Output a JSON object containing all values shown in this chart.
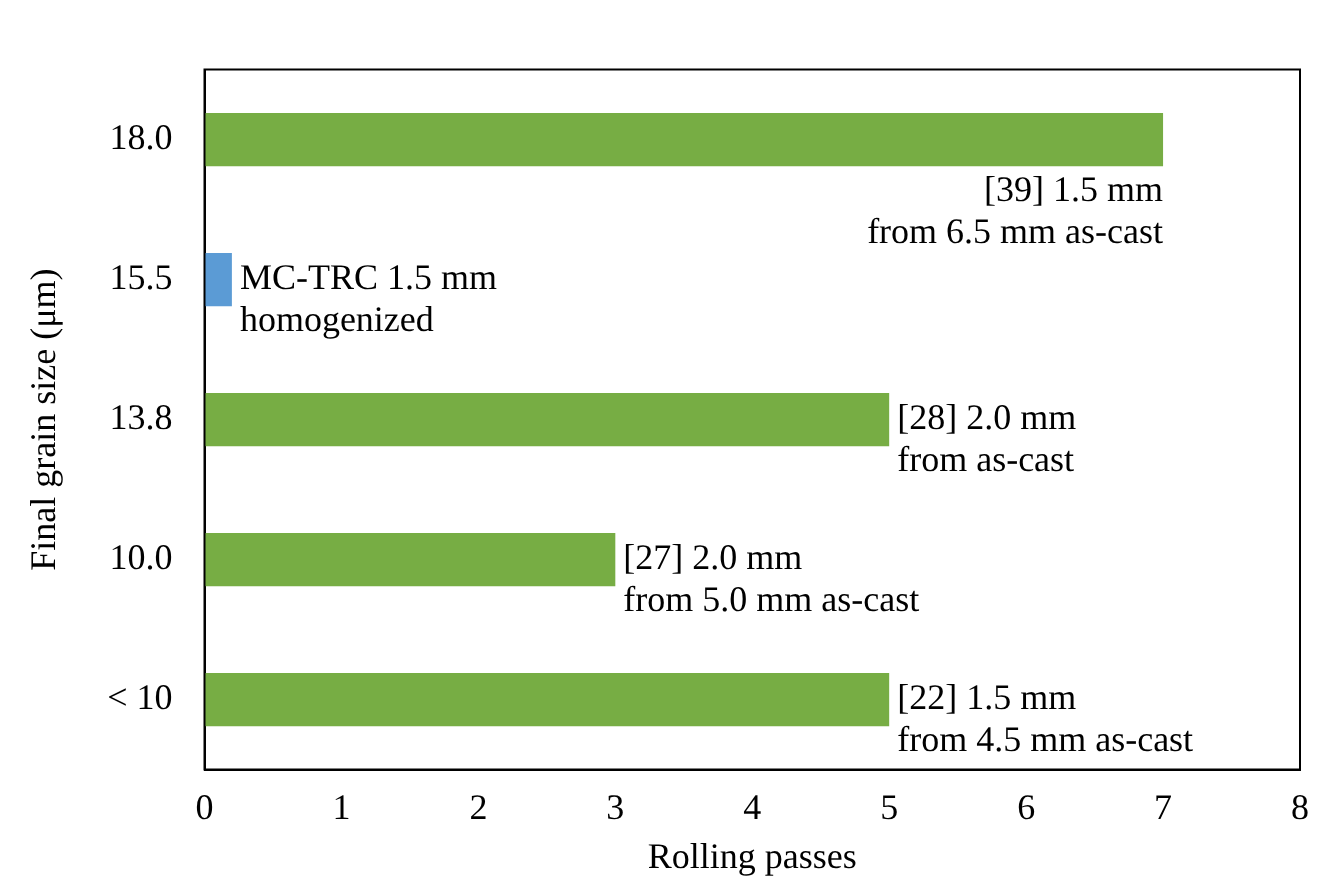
{
  "chart_data": {
    "type": "bar",
    "orientation": "horizontal",
    "xlabel": "Rolling passes",
    "ylabel": "Final grain size (μm)",
    "categories": [
      "18.0",
      "15.5",
      "13.8",
      "10.0",
      "< 10"
    ],
    "values": [
      7,
      0.2,
      5,
      3,
      5
    ],
    "colors": [
      "#77ad44",
      "#5b9bd5",
      "#77ad44",
      "#77ad44",
      "#77ad44"
    ],
    "xlim": [
      0,
      8
    ],
    "xticks": [
      0,
      1,
      2,
      3,
      4,
      5,
      6,
      7,
      8
    ],
    "grid": false,
    "legend": false,
    "annotations": [
      {
        "text": "[39] 1.5 mm\nfrom 6.5 mm as-cast",
        "x": 7,
        "y": "18.0"
      },
      {
        "text": "MC-TRC 1.5 mm\nhomogenized",
        "x": 0.2,
        "y": "15.5"
      },
      {
        "text": "[28] 2.0 mm\nfrom as-cast",
        "x": 5,
        "y": "13.8"
      },
      {
        "text": "[27] 2.0 mm\nfrom 5.0 mm as-cast",
        "x": 3,
        "y": "10.0"
      },
      {
        "text": "[22] 1.5 mm\nfrom 4.5 mm as-cast",
        "x": 5,
        "y": "< 10"
      }
    ]
  }
}
